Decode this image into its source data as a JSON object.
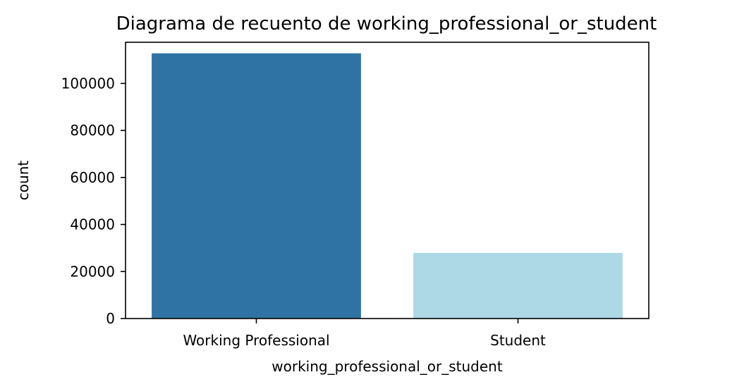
{
  "chart_data": {
    "type": "bar",
    "title": "Diagrama de recuento de working_professional_or_student",
    "xlabel": "working_professional_or_student",
    "ylabel": "count",
    "categories": [
      "Working Professional",
      "Student"
    ],
    "values": [
      112800,
      27900
    ],
    "colors": [
      "#2e73a3",
      "#add8e6"
    ],
    "ylim": [
      0,
      117500
    ],
    "yticks": [
      0,
      20000,
      40000,
      60000,
      80000,
      100000
    ],
    "ytick_labels": [
      "0",
      "20000",
      "40000",
      "60000",
      "80000",
      "100000"
    ],
    "grid": false,
    "legend": "none"
  }
}
